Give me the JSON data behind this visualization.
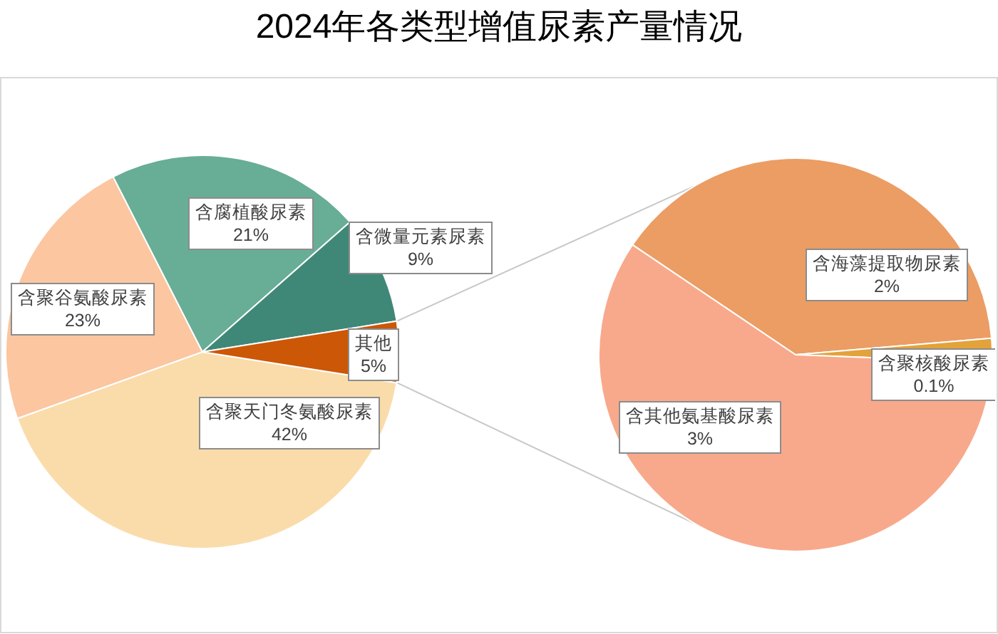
{
  "chart_data": [
    {
      "type": "pie",
      "title": "2024年各类型增值尿素产量情况",
      "categories": [
        "含聚天门冬氨酸尿素",
        "含聚谷氨酸尿素",
        "含腐植酸尿素",
        "含微量元素尿素",
        "其他"
      ],
      "values": [
        42,
        23,
        21,
        9,
        5
      ],
      "value_labels": [
        "42%",
        "23%",
        "21%",
        "9%",
        "5%"
      ],
      "colors": [
        "#fadcab",
        "#fbc6a0",
        "#68ad96",
        "#3f8878",
        "#cc5706"
      ]
    },
    {
      "type": "pie",
      "categories": [
        "含海藻提取物尿素",
        "含聚核酸尿素",
        "含其他氨基酸尿素"
      ],
      "values": [
        2,
        0.1,
        3
      ],
      "value_labels": [
        "2%",
        "0.1%",
        "3%"
      ],
      "colors": [
        "#eb9d64",
        "#e3a23a",
        "#f8a98b"
      ]
    }
  ]
}
